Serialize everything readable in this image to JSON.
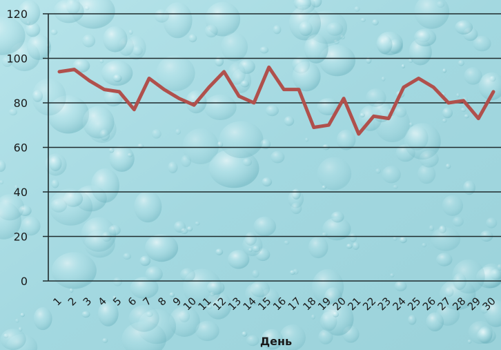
{
  "chart_data": {
    "type": "line",
    "title": "",
    "xlabel": "День",
    "ylabel": "",
    "ylim": [
      0,
      120
    ],
    "yticks": [
      "0",
      "20",
      "40",
      "60",
      "80",
      "100",
      "120"
    ],
    "categories": [
      "1",
      "2",
      "3",
      "4",
      "5",
      "6",
      "7",
      "8",
      "9",
      "10",
      "11",
      "12",
      "13",
      "14",
      "15",
      "16",
      "17",
      "18",
      "19",
      "20",
      "21",
      "22",
      "23",
      "24",
      "25",
      "26",
      "27",
      "28",
      "29",
      "30"
    ],
    "series": [
      {
        "values": [
          94,
          95,
          90,
          86,
          85,
          77,
          91,
          86,
          82,
          79,
          87,
          94,
          83,
          80,
          96,
          86,
          86,
          69,
          70,
          82,
          66,
          74,
          73,
          87,
          91,
          87,
          80,
          81,
          73,
          85
        ],
        "color": "#b0504c"
      }
    ],
    "grid": true,
    "legend": "none",
    "background": "water-droplets",
    "colors": {
      "background_base": "#a8dbe2",
      "gridline": "#1e2a2c",
      "axis_text": "#1a1a1a",
      "line": "#b0504c"
    }
  }
}
